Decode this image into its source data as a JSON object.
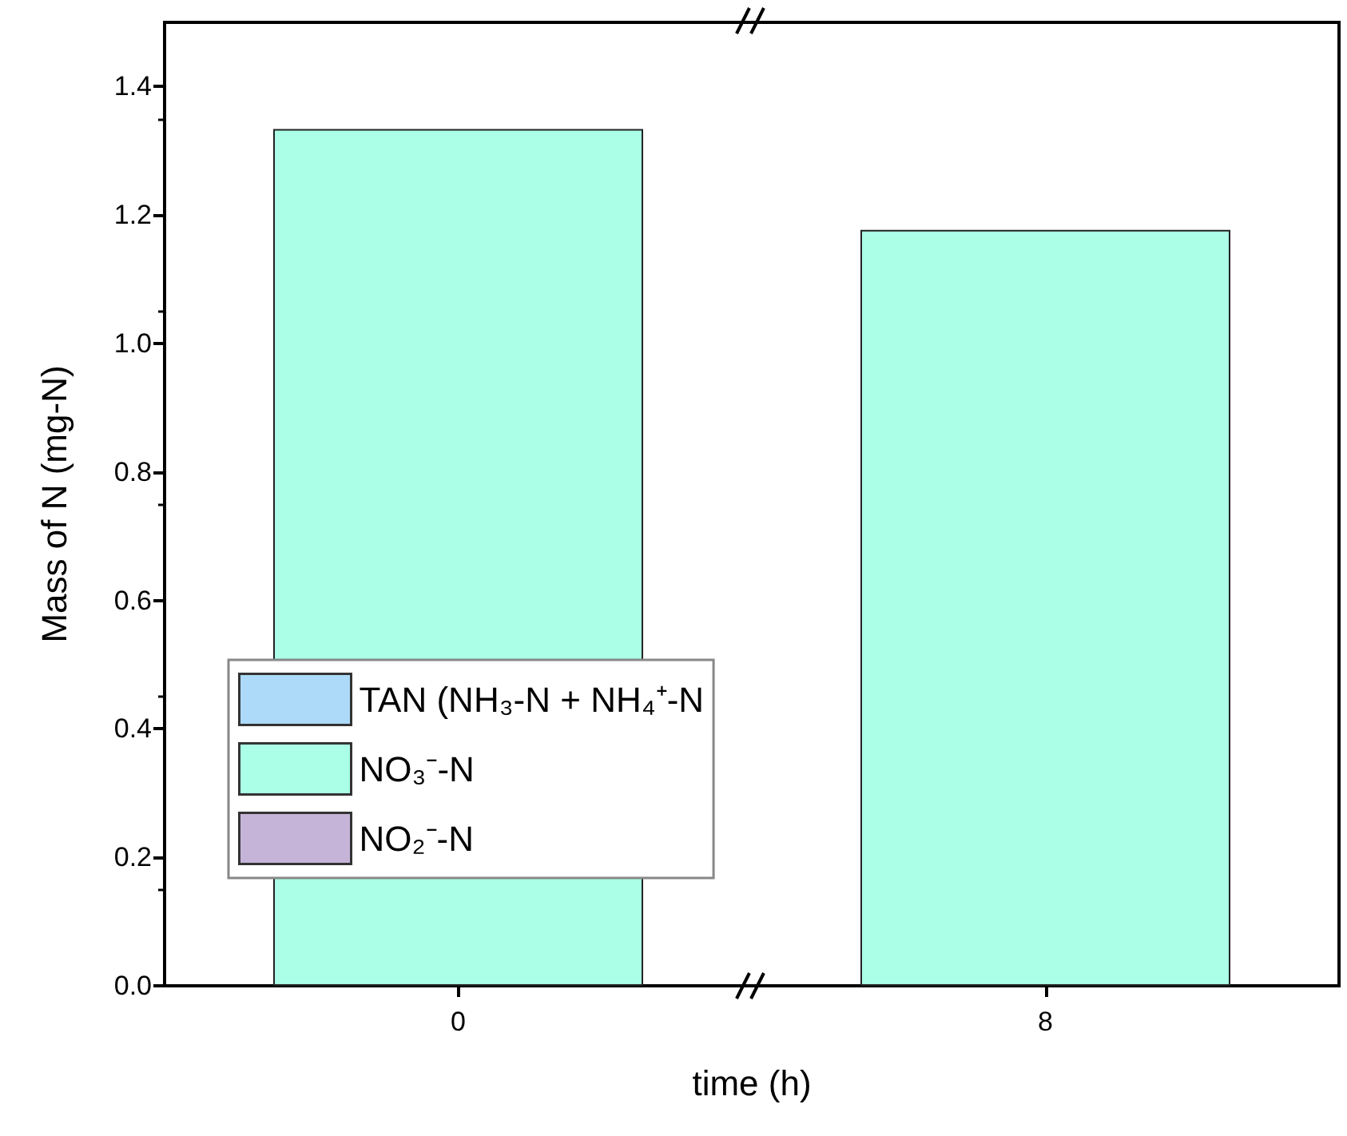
{
  "chart_data": {
    "type": "bar",
    "xlabel": "time (h)",
    "ylabel": "Mass of N (mg-N)",
    "categories": [
      "0",
      "8"
    ],
    "series": [
      {
        "name": "TAN (NH₃-N + NH₄⁺-N",
        "color": "#acdaf8",
        "values": [
          null,
          null
        ]
      },
      {
        "name": "NO₃⁻-N",
        "color": "#aaffe6",
        "values": [
          1.334,
          1.177
        ]
      },
      {
        "name": "NO₂⁻-N",
        "color": "#c6b4d8",
        "values": [
          null,
          null
        ]
      }
    ],
    "ylim": [
      0,
      1.5
    ],
    "yticks": [
      {
        "value": 0,
        "label": "0.0"
      },
      {
        "value": 0.2,
        "label": "0.2"
      },
      {
        "value": 0.4,
        "label": "0.4"
      },
      {
        "value": 0.6,
        "label": "0.6"
      },
      {
        "value": 0.8,
        "label": "0.8"
      },
      {
        "value": 1,
        "label": "1.0"
      },
      {
        "value": 1.2,
        "label": "1.2"
      },
      {
        "value": 1.4,
        "label": "1.4"
      }
    ],
    "grid": false,
    "legend": "bottom left"
  }
}
